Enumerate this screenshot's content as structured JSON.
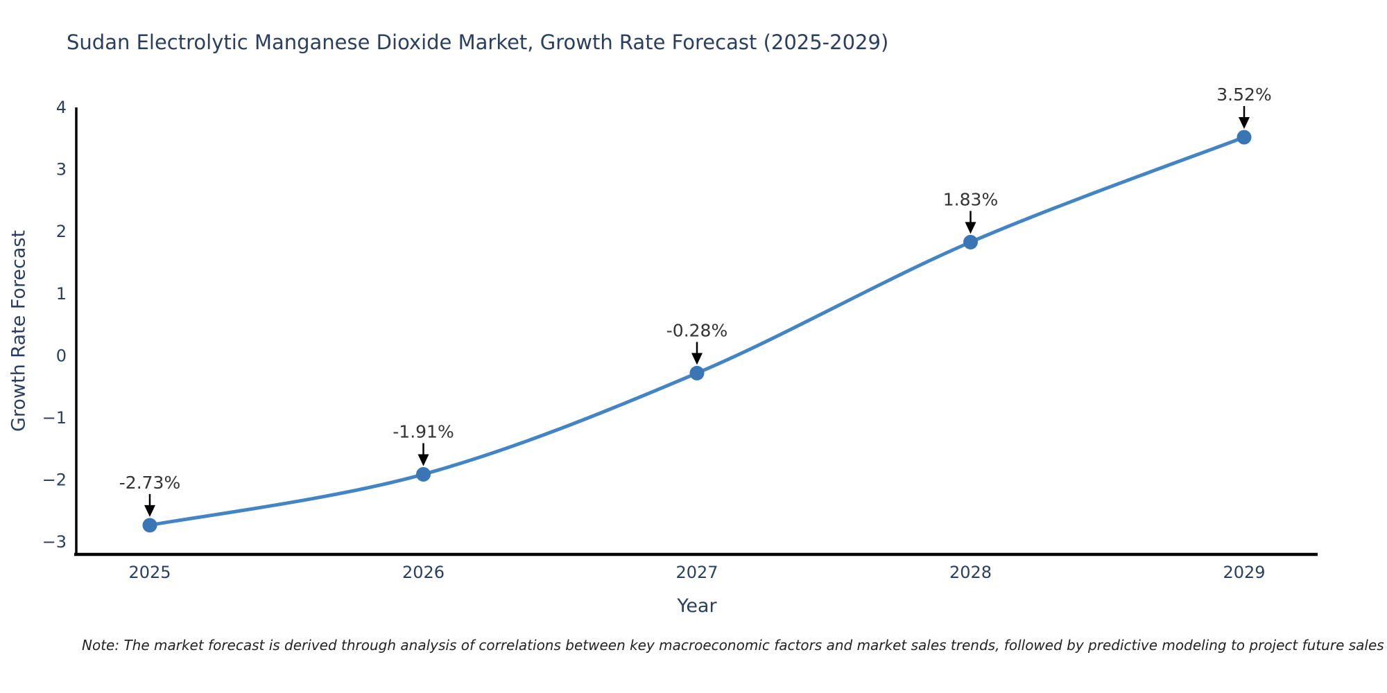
{
  "title": "Sudan Electrolytic Manganese Dioxide Market, Growth Rate Forecast (2025-2029)",
  "note": "Note: The market forecast is derived through analysis of correlations between key macroeconomic factors and market sales trends, followed by predictive modeling to project future sales",
  "colors": {
    "line": "#4384c4",
    "marker": "#3a76b4",
    "axis": "#000000",
    "text": "#2a3f5f",
    "annotation_text": "#333333",
    "arrow": "#000000",
    "background": "#ffffff"
  },
  "chart_data": {
    "type": "line",
    "title": "Sudan Electrolytic Manganese Dioxide Market, Growth Rate Forecast (2025-2029)",
    "xlabel": "Year",
    "ylabel": "Growth Rate Forecast",
    "x": [
      2025,
      2026,
      2027,
      2028,
      2029
    ],
    "x_tick_labels": [
      "2025",
      "2026",
      "2027",
      "2028",
      "2029"
    ],
    "series": [
      {
        "name": "Growth Rate Forecast",
        "values": [
          -2.73,
          -1.91,
          -0.28,
          1.83,
          3.52
        ]
      }
    ],
    "point_labels": [
      "-2.73%",
      "-1.91%",
      "-0.28%",
      "1.83%",
      "3.52%"
    ],
    "ytick_values": [
      4,
      3,
      2,
      1,
      0,
      -1,
      -2,
      -3
    ],
    "ytick_labels": [
      "4",
      "3",
      "2",
      "1",
      "0",
      "−1",
      "−2",
      "−3"
    ],
    "ylim": [
      -3.2,
      4
    ],
    "grid": false,
    "legend": "none",
    "line_shape": "spline",
    "annotation_style": "black-arrow-down-to-point"
  }
}
